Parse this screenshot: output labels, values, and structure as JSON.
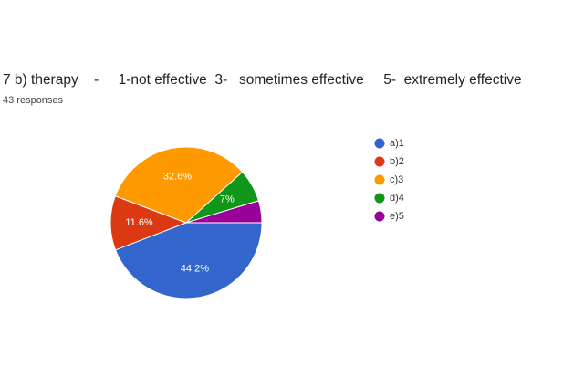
{
  "chart_data": {
    "type": "pie",
    "title": "7 b) therapy    -     1-not effective  3-   sometimes effective     5-  extremely effective",
    "subtitle": "43 responses",
    "categories": [
      "a)1",
      "b)2",
      "c)3",
      "d)4",
      "e)5"
    ],
    "values": [
      44.2,
      11.6,
      32.6,
      7,
      4.7
    ],
    "value_labels": [
      "44.2%",
      "11.6%",
      "32.6%",
      "7%",
      null
    ],
    "colors": [
      "#3366cc",
      "#dc3912",
      "#ff9900",
      "#109618",
      "#990099"
    ],
    "legend": "right"
  }
}
